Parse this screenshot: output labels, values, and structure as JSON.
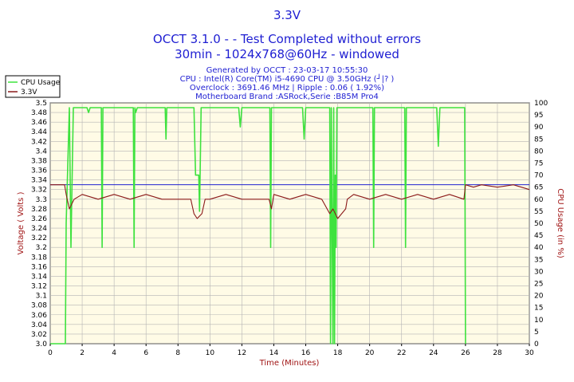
{
  "header": {
    "title": "3.3V",
    "subtitle": "OCCT 3.1.0 -  - Test Completed without errors",
    "subtitle2": "30min - 1024x768@60Hz - windowed"
  },
  "info": {
    "generated": "Generated by OCCT : 23-03-17 10:55:30",
    "cpu": "CPU : Intel(R) Core(TM) i5-4690 CPU @ 3.50GHz (┘|? )",
    "overclock": "Overclock : 3691.46 MHz | Ripple : 0.06 ( 1.92%)",
    "motherboard": "Motherboard Brand :ASRock,Serie :B85M Pro4"
  },
  "colors": {
    "plot_bg": "#fffbe6",
    "grid": "#b4b4b4",
    "cpu_line": "#3ee23e",
    "voltage_line": "#8b1a1a",
    "reference_line": "#2020d0",
    "title": "#1e1ed2",
    "axis_label": "#a01414"
  },
  "chart_data": {
    "type": "line",
    "xlabel": "Time (Minutes)",
    "ylabel_left": "Voltage ( Volts )",
    "ylabel_right": "CPU Usage (in %)",
    "xlim": [
      0,
      30
    ],
    "ylim_left": [
      3.0,
      3.5
    ],
    "ylim_right": [
      0,
      100
    ],
    "x_ticks": [
      "0",
      "2",
      "4",
      "6",
      "8",
      "10",
      "12",
      "14",
      "16",
      "18",
      "20",
      "22",
      "24",
      "26",
      "28",
      "30"
    ],
    "y_ticks_left": [
      "3.5",
      "3.48",
      "3.46",
      "3.44",
      "3.42",
      "3.4",
      "3.38",
      "3.36",
      "3.34",
      "3.32",
      "3.3",
      "3.28",
      "3.26",
      "3.24",
      "3.22",
      "3.2",
      "3.18",
      "3.16",
      "3.14",
      "3.12",
      "3.1",
      "3.08",
      "3.06",
      "3.04",
      "3.02",
      "3.0"
    ],
    "y_ticks_right": [
      "100",
      "95",
      "90",
      "85",
      "80",
      "75",
      "70",
      "65",
      "60",
      "55",
      "50",
      "45",
      "40",
      "35",
      "30",
      "25",
      "20",
      "15",
      "10",
      "5",
      "0"
    ],
    "grid": true,
    "legend_position": "top-left",
    "reference_value": 3.33,
    "series": [
      {
        "name": "CPU Usage",
        "axis": "right",
        "x": [
          0,
          0.95,
          1.0,
          1.2,
          1.3,
          1.35,
          1.45,
          2.3,
          2.4,
          2.5,
          3.2,
          3.25,
          3.3,
          3.35,
          3.5,
          5.2,
          5.25,
          5.3,
          5.35,
          5.45,
          7.2,
          7.25,
          7.3,
          7.4,
          9.0,
          9.1,
          9.3,
          9.35,
          9.45,
          11.8,
          11.9,
          12.0,
          13.75,
          13.8,
          13.85,
          13.95,
          15.8,
          15.9,
          16.0,
          17.5,
          17.55,
          17.6,
          17.7,
          17.75,
          17.8,
          17.85,
          17.9,
          17.95,
          18.1,
          20.2,
          20.25,
          20.3,
          20.4,
          22.2,
          22.25,
          22.3,
          22.4,
          24.2,
          24.3,
          24.4,
          25.95,
          26.0
        ],
        "values": [
          0,
          0,
          50,
          98,
          40,
          60,
          98,
          98,
          96,
          98,
          98,
          40,
          98,
          98,
          98,
          98,
          40,
          98,
          96,
          98,
          98,
          85,
          98,
          98,
          98,
          70,
          70,
          55,
          98,
          98,
          90,
          98,
          98,
          40,
          98,
          98,
          98,
          85,
          98,
          98,
          0,
          98,
          0,
          98,
          0,
          70,
          40,
          98,
          98,
          98,
          40,
          98,
          98,
          98,
          40,
          98,
          98,
          98,
          82,
          98,
          98,
          0
        ]
      },
      {
        "name": "3.3V",
        "axis": "left",
        "x": [
          0,
          0.9,
          1.0,
          1.2,
          1.5,
          2.0,
          3.0,
          4.0,
          5.0,
          6.0,
          7.0,
          8.0,
          8.8,
          9.0,
          9.2,
          9.5,
          9.7,
          10.0,
          11.0,
          12.0,
          13.0,
          13.7,
          13.85,
          14.0,
          15.0,
          16.0,
          17.0,
          17.5,
          17.7,
          18.0,
          18.5,
          18.6,
          19.0,
          20.0,
          21.0,
          22.0,
          23.0,
          24.0,
          25.0,
          25.9,
          26.0,
          26.5,
          27.0,
          28.0,
          29.0,
          30.0
        ],
        "values": [
          3.33,
          3.33,
          3.31,
          3.28,
          3.3,
          3.31,
          3.3,
          3.31,
          3.3,
          3.31,
          3.3,
          3.3,
          3.3,
          3.27,
          3.26,
          3.27,
          3.3,
          3.3,
          3.31,
          3.3,
          3.3,
          3.3,
          3.28,
          3.31,
          3.3,
          3.31,
          3.3,
          3.27,
          3.28,
          3.26,
          3.28,
          3.3,
          3.31,
          3.3,
          3.31,
          3.3,
          3.31,
          3.3,
          3.31,
          3.3,
          3.33,
          3.325,
          3.33,
          3.325,
          3.33,
          3.32
        ]
      }
    ]
  }
}
